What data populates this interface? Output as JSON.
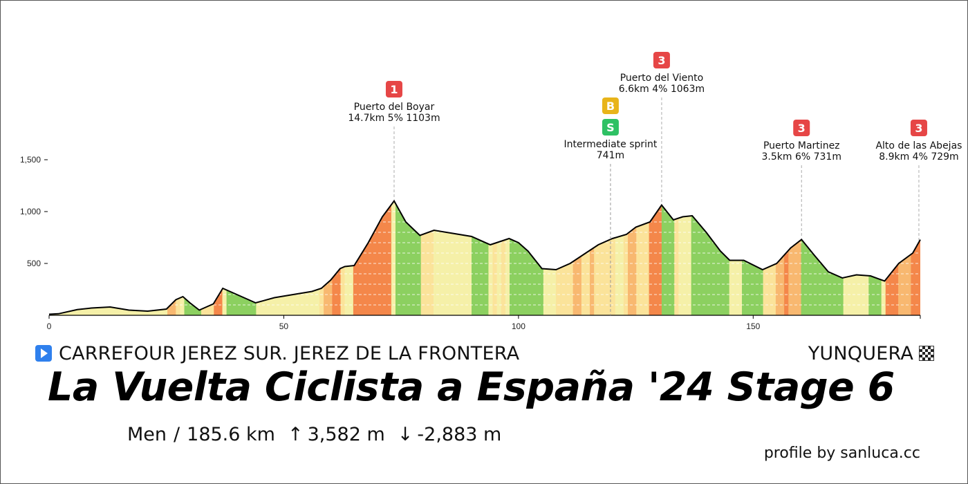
{
  "chart_data": {
    "type": "area",
    "title": "La Vuelta Ciclista a España '24 Stage 6",
    "xlabel": "",
    "ylabel": "",
    "xlim": [
      0,
      185.6
    ],
    "ylim": [
      0,
      1500
    ],
    "x_ticks": [
      0,
      50,
      100,
      150
    ],
    "x_tick_labels": [
      "0",
      "50",
      "100",
      "150"
    ],
    "y_ticks": [
      500,
      1000,
      1500
    ],
    "y_tick_labels": [
      "500",
      "1,000",
      "1,500"
    ],
    "grid": "dashed horizontal",
    "gradient_palette": {
      "down": "#8cd060",
      "flat": "#f5f0a8",
      "easy": "#fbe39a",
      "moderate": "#f8b870",
      "steep": "#f4874a"
    },
    "elevation_profile": {
      "x": [
        0,
        2,
        6,
        9,
        13,
        17,
        21,
        25,
        27,
        28.5,
        30,
        32,
        35,
        37,
        40,
        44,
        48,
        52,
        56,
        58,
        60,
        62,
        63,
        65,
        68,
        71,
        73.5,
        76,
        79,
        82,
        86,
        90,
        94,
        98,
        100,
        102,
        105,
        108,
        111,
        114,
        117,
        120,
        123,
        125,
        128,
        130.5,
        133,
        135,
        137,
        140,
        143,
        145,
        148,
        152,
        155,
        158,
        160.3,
        163,
        166,
        169,
        172,
        175,
        178,
        181,
        184,
        185.6
      ],
      "y": [
        10,
        15,
        55,
        70,
        80,
        50,
        40,
        60,
        150,
        180,
        120,
        50,
        110,
        260,
        200,
        120,
        170,
        200,
        230,
        260,
        340,
        450,
        470,
        480,
        700,
        950,
        1103,
        900,
        770,
        820,
        790,
        760,
        680,
        740,
        700,
        620,
        450,
        440,
        500,
        590,
        680,
        740,
        780,
        850,
        900,
        1063,
        920,
        950,
        960,
        800,
        620,
        530,
        530,
        440,
        500,
        650,
        731,
        580,
        420,
        360,
        390,
        380,
        330,
        500,
        600,
        729
      ]
    },
    "climbs": [
      {
        "km": 73.5,
        "category": "1",
        "name": "Puerto del Boyar",
        "details": "14.7km 5% 1103m"
      },
      {
        "km": 130.5,
        "category": "3",
        "name": "Puerto del Viento",
        "details": "6.6km 4% 1063m"
      },
      {
        "km": 160.3,
        "category": "3",
        "name": "Puerto Martinez",
        "details": "3.5km 6% 731m"
      },
      {
        "km": 185.3,
        "category": "3",
        "name": "Alto de las Abejas",
        "details": "8.9km 4% 729m"
      }
    ],
    "sprints": [
      {
        "km": 119.6,
        "badges": [
          "B",
          "S"
        ],
        "name": "Intermediate sprint",
        "details": "741m"
      }
    ],
    "badge_colors": {
      "climb": "#e64646",
      "bonus": "#e8b41a",
      "sprint": "#2ec164"
    }
  },
  "route": {
    "start": "CARREFOUR JEREZ SUR. JEREZ DE LA FRONTERA",
    "finish": "YUNQUERA"
  },
  "race_title": "La Vuelta Ciclista a España '24 Stage 6",
  "stats": {
    "category": "Men",
    "separator": "/",
    "distance": "185.6 km",
    "climb_arrow": "↑",
    "total_ascent": "3,582 m",
    "descent_arrow": "↓",
    "total_descent": "-2,883 m"
  },
  "credit": "profile by sanluca.cc",
  "icons": {
    "start": "play-icon",
    "finish": "checkered-flag-icon"
  }
}
